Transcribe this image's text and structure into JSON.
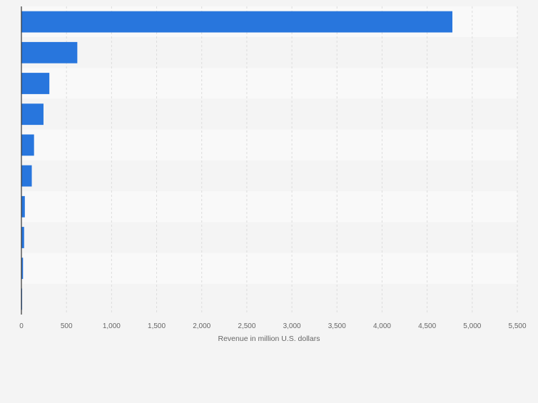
{
  "chart_data": {
    "type": "bar",
    "orientation": "horizontal",
    "categories": [
      "",
      "",
      "",
      "",
      "",
      "",
      "",
      "",
      "",
      ""
    ],
    "values": [
      4780,
      620,
      310,
      245,
      140,
      115,
      38,
      30,
      18,
      8
    ],
    "title": "",
    "xlabel": "Revenue in million U.S. dollars",
    "ylabel": "",
    "xlim": [
      0,
      5500
    ],
    "x_ticks": [
      0,
      500,
      1000,
      1500,
      2000,
      2500,
      3000,
      3500,
      4000,
      4500,
      5000,
      5500
    ],
    "x_tick_labels": [
      "0",
      "500",
      "1,000",
      "1,500",
      "2,000",
      "2,500",
      "3,000",
      "3,500",
      "4,000",
      "4,500",
      "5,000",
      "5,500"
    ],
    "grid": true,
    "legend": "none"
  },
  "colors": {
    "bar": "#2876dd",
    "band_light": "#f9f9f9",
    "band_dark": "#f4f4f4",
    "grid": "#dcdcdc",
    "axis": "#333333",
    "tick_text": "#666666"
  }
}
